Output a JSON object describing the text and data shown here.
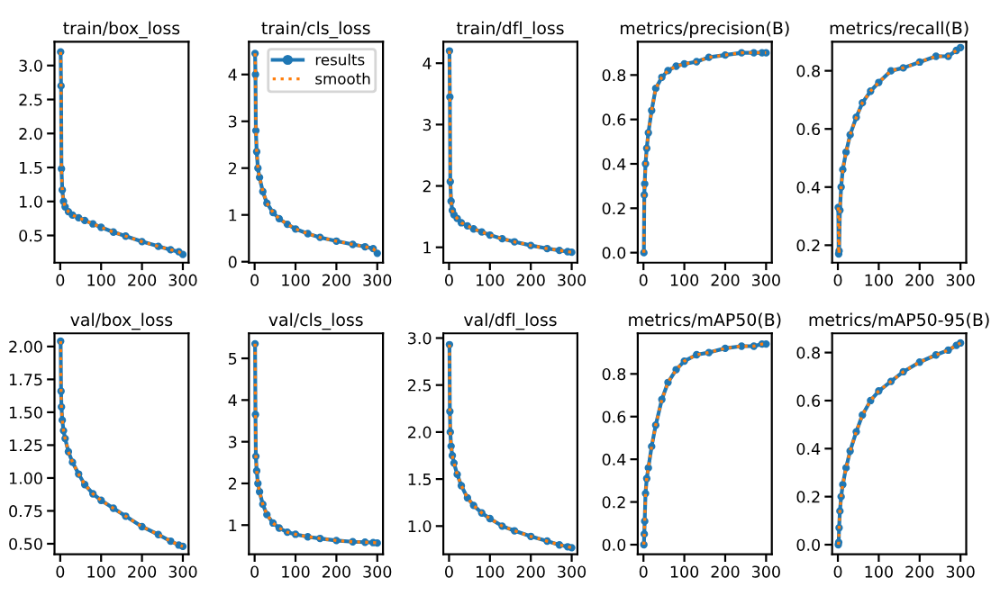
{
  "chart_data": [
    {
      "type": "line",
      "title": "train/box_loss",
      "xlim": [
        -14,
        314
      ],
      "xticks": [
        0,
        100,
        200,
        300
      ],
      "ylim": [
        0.1,
        3.35
      ],
      "yticks": [
        0.5,
        {
          "value": 1,
          "label": "1.0"
        },
        1.5,
        {
          "value": 2,
          "label": "2.0"
        },
        2.5,
        {
          "value": 3,
          "label": "3.0"
        }
      ],
      "legend": false,
      "x": [
        1,
        2,
        3,
        5,
        8,
        12,
        20,
        30,
        45,
        60,
        80,
        100,
        130,
        160,
        200,
        240,
        270,
        290,
        300
      ],
      "series": [
        {
          "color": "#1f77b4",
          "marker": "circle",
          "line_style": "solid",
          "values": [
            3.2,
            2.7,
            1.48,
            1.17,
            1.0,
            0.92,
            0.85,
            0.8,
            0.76,
            0.72,
            0.67,
            0.62,
            0.55,
            0.49,
            0.41,
            0.34,
            0.29,
            0.26,
            0.22
          ]
        },
        {
          "color": "#ff7f0e",
          "marker": "none",
          "line_style": "dotted",
          "values": [
            3.2,
            2.7,
            1.48,
            1.17,
            1.0,
            0.92,
            0.85,
            0.8,
            0.76,
            0.72,
            0.67,
            0.62,
            0.55,
            0.49,
            0.41,
            0.34,
            0.29,
            0.26,
            0.22
          ]
        }
      ]
    },
    {
      "type": "line",
      "title": "train/cls_loss",
      "xlim": [
        -14,
        314
      ],
      "xticks": [
        0,
        100,
        200,
        300
      ],
      "ylim": [
        -0.02,
        4.7
      ],
      "yticks": [
        0,
        1,
        2,
        3,
        4
      ],
      "legend": "top right",
      "x": [
        1,
        2,
        3,
        5,
        8,
        12,
        20,
        30,
        45,
        60,
        80,
        100,
        130,
        160,
        200,
        240,
        270,
        290,
        300
      ],
      "series": [
        {
          "name": "results",
          "color": "#1f77b4",
          "marker": "circle",
          "line_style": "solid",
          "values": [
            4.45,
            4.0,
            2.8,
            2.35,
            2.0,
            1.8,
            1.5,
            1.25,
            1.05,
            0.92,
            0.8,
            0.7,
            0.6,
            0.52,
            0.44,
            0.37,
            0.32,
            0.28,
            0.18
          ]
        },
        {
          "name": "smooth",
          "color": "#ff7f0e",
          "marker": "none",
          "line_style": "dotted",
          "values": [
            4.45,
            4.0,
            2.8,
            2.35,
            2.0,
            1.8,
            1.5,
            1.25,
            1.05,
            0.92,
            0.8,
            0.7,
            0.6,
            0.52,
            0.44,
            0.37,
            0.32,
            0.28,
            0.18
          ]
        }
      ]
    },
    {
      "type": "line",
      "title": "train/dfl_loss",
      "xlim": [
        -14,
        314
      ],
      "xticks": [
        0,
        100,
        200,
        300
      ],
      "ylim": [
        0.75,
        4.35
      ],
      "yticks": [
        1,
        2,
        3,
        4
      ],
      "legend": false,
      "x": [
        1,
        2,
        3,
        5,
        8,
        12,
        20,
        30,
        45,
        60,
        80,
        100,
        130,
        160,
        200,
        240,
        270,
        290,
        300
      ],
      "series": [
        {
          "color": "#1f77b4",
          "marker": "circle",
          "line_style": "solid",
          "values": [
            4.2,
            3.45,
            2.07,
            1.75,
            1.6,
            1.53,
            1.47,
            1.4,
            1.35,
            1.3,
            1.25,
            1.2,
            1.14,
            1.09,
            1.03,
            0.98,
            0.95,
            0.93,
            0.92
          ]
        },
        {
          "color": "#ff7f0e",
          "marker": "none",
          "line_style": "dotted",
          "values": [
            4.2,
            3.45,
            2.07,
            1.75,
            1.6,
            1.53,
            1.47,
            1.4,
            1.35,
            1.3,
            1.25,
            1.2,
            1.14,
            1.09,
            1.03,
            0.98,
            0.95,
            0.93,
            0.92
          ]
        }
      ]
    },
    {
      "type": "line",
      "title": "metrics/precision(B)",
      "xlim": [
        -14,
        314
      ],
      "xticks": [
        0,
        100,
        200,
        300
      ],
      "ylim": [
        -0.045,
        0.95
      ],
      "yticks": [
        {
          "value": 0,
          "label": "0.0"
        },
        0.2,
        0.4,
        0.6,
        0.8
      ],
      "legend": false,
      "x": [
        1,
        2,
        3,
        5,
        8,
        12,
        20,
        30,
        45,
        60,
        80,
        100,
        130,
        160,
        200,
        240,
        270,
        290,
        300
      ],
      "series": [
        {
          "color": "#1f77b4",
          "marker": "circle",
          "line_style": "solid",
          "values": [
            0.0,
            0.26,
            0.31,
            0.4,
            0.47,
            0.54,
            0.64,
            0.74,
            0.79,
            0.82,
            0.84,
            0.85,
            0.86,
            0.88,
            0.89,
            0.9,
            0.9,
            0.9,
            0.9
          ]
        },
        {
          "color": "#ff7f0e",
          "marker": "none",
          "line_style": "dotted",
          "values": [
            0.0,
            0.26,
            0.31,
            0.4,
            0.47,
            0.54,
            0.64,
            0.74,
            0.79,
            0.82,
            0.84,
            0.85,
            0.86,
            0.88,
            0.89,
            0.9,
            0.9,
            0.9,
            0.9
          ]
        }
      ]
    },
    {
      "type": "line",
      "title": "metrics/recall(B)",
      "xlim": [
        -14,
        314
      ],
      "xticks": [
        0,
        100,
        200,
        300
      ],
      "ylim": [
        0.14,
        0.9
      ],
      "yticks": [
        0.2,
        0.4,
        0.6,
        0.8
      ],
      "legend": false,
      "x": [
        1,
        2,
        3,
        5,
        8,
        12,
        20,
        30,
        45,
        60,
        80,
        100,
        130,
        160,
        200,
        240,
        270,
        290,
        300
      ],
      "series": [
        {
          "color": "#1f77b4",
          "marker": "circle",
          "line_style": "solid",
          "values": [
            0.33,
            0.17,
            0.18,
            0.32,
            0.4,
            0.46,
            0.52,
            0.58,
            0.64,
            0.69,
            0.73,
            0.76,
            0.8,
            0.81,
            0.83,
            0.85,
            0.85,
            0.87,
            0.88
          ]
        },
        {
          "color": "#ff7f0e",
          "marker": "none",
          "line_style": "dotted",
          "values": [
            0.33,
            0.17,
            0.18,
            0.32,
            0.4,
            0.46,
            0.52,
            0.58,
            0.64,
            0.69,
            0.73,
            0.76,
            0.8,
            0.81,
            0.83,
            0.85,
            0.85,
            0.87,
            0.88
          ]
        }
      ]
    },
    {
      "type": "line",
      "title": "val/box_loss",
      "xlim": [
        -14,
        314
      ],
      "xticks": [
        0,
        100,
        200,
        300
      ],
      "ylim": [
        0.42,
        2.1
      ],
      "yticks": [
        {
          "value": 0.5,
          "label": "0.50"
        },
        {
          "value": 0.75,
          "label": "0.75"
        },
        {
          "value": 1.0,
          "label": "1.00"
        },
        {
          "value": 1.25,
          "label": "1.25"
        },
        {
          "value": 1.5,
          "label": "1.50"
        },
        {
          "value": 1.75,
          "label": "1.75"
        },
        {
          "value": 2.0,
          "label": "2.00"
        }
      ],
      "legend": false,
      "x": [
        1,
        2,
        3,
        5,
        8,
        12,
        20,
        30,
        45,
        60,
        80,
        100,
        130,
        160,
        200,
        240,
        270,
        290,
        300
      ],
      "series": [
        {
          "color": "#1f77b4",
          "marker": "circle",
          "line_style": "solid",
          "values": [
            2.04,
            1.66,
            1.54,
            1.44,
            1.36,
            1.3,
            1.2,
            1.12,
            1.03,
            0.95,
            0.88,
            0.83,
            0.77,
            0.71,
            0.63,
            0.57,
            0.52,
            0.49,
            0.48
          ]
        },
        {
          "color": "#ff7f0e",
          "marker": "none",
          "line_style": "dotted",
          "values": [
            2.04,
            1.66,
            1.54,
            1.44,
            1.36,
            1.3,
            1.2,
            1.12,
            1.03,
            0.95,
            0.88,
            0.83,
            0.77,
            0.71,
            0.63,
            0.57,
            0.52,
            0.49,
            0.48
          ]
        }
      ]
    },
    {
      "type": "line",
      "title": "val/cls_loss",
      "xlim": [
        -14,
        314
      ],
      "xticks": [
        0,
        100,
        200,
        300
      ],
      "ylim": [
        0.3,
        5.6
      ],
      "yticks": [
        1,
        2,
        3,
        4,
        5
      ],
      "legend": false,
      "x": [
        1,
        2,
        3,
        5,
        8,
        12,
        20,
        30,
        45,
        60,
        80,
        100,
        130,
        160,
        200,
        240,
        270,
        290,
        300
      ],
      "series": [
        {
          "color": "#1f77b4",
          "marker": "circle",
          "line_style": "solid",
          "values": [
            5.35,
            3.65,
            2.65,
            2.3,
            2.0,
            1.8,
            1.5,
            1.25,
            1.05,
            0.93,
            0.83,
            0.78,
            0.72,
            0.68,
            0.63,
            0.6,
            0.59,
            0.58,
            0.57
          ]
        },
        {
          "color": "#ff7f0e",
          "marker": "none",
          "line_style": "dotted",
          "values": [
            5.35,
            3.65,
            2.65,
            2.3,
            2.0,
            1.8,
            1.5,
            1.25,
            1.05,
            0.93,
            0.83,
            0.78,
            0.72,
            0.68,
            0.63,
            0.6,
            0.59,
            0.58,
            0.57
          ]
        }
      ]
    },
    {
      "type": "line",
      "title": "val/dfl_loss",
      "xlim": [
        -14,
        314
      ],
      "xticks": [
        0,
        100,
        200,
        300
      ],
      "ylim": [
        0.7,
        3.05
      ],
      "yticks": [
        {
          "value": 1,
          "label": "1.0"
        },
        1.5,
        {
          "value": 2,
          "label": "2.0"
        },
        2.5,
        {
          "value": 3,
          "label": "3.0"
        }
      ],
      "legend": false,
      "x": [
        1,
        2,
        3,
        5,
        8,
        12,
        20,
        30,
        45,
        60,
        80,
        100,
        130,
        160,
        200,
        240,
        270,
        290,
        300
      ],
      "series": [
        {
          "color": "#1f77b4",
          "marker": "circle",
          "line_style": "solid",
          "values": [
            2.93,
            2.22,
            2.0,
            1.85,
            1.75,
            1.67,
            1.55,
            1.43,
            1.3,
            1.22,
            1.14,
            1.08,
            1.0,
            0.95,
            0.89,
            0.84,
            0.8,
            0.78,
            0.77
          ]
        },
        {
          "color": "#ff7f0e",
          "marker": "none",
          "line_style": "dotted",
          "values": [
            2.93,
            2.22,
            2.0,
            1.85,
            1.75,
            1.67,
            1.55,
            1.43,
            1.3,
            1.22,
            1.14,
            1.08,
            1.0,
            0.95,
            0.89,
            0.84,
            0.8,
            0.78,
            0.77
          ]
        }
      ]
    },
    {
      "type": "line",
      "title": "metrics/mAP50(B)",
      "xlim": [
        -14,
        314
      ],
      "xticks": [
        0,
        100,
        200,
        300
      ],
      "ylim": [
        -0.045,
        0.99
      ],
      "yticks": [
        {
          "value": 0,
          "label": "0.0"
        },
        0.2,
        0.4,
        0.6,
        0.8
      ],
      "legend": false,
      "x": [
        1,
        2,
        3,
        5,
        8,
        12,
        20,
        30,
        45,
        60,
        80,
        100,
        130,
        160,
        200,
        240,
        270,
        290,
        300
      ],
      "series": [
        {
          "color": "#1f77b4",
          "marker": "circle",
          "line_style": "solid",
          "values": [
            0.0,
            0.05,
            0.11,
            0.24,
            0.31,
            0.36,
            0.46,
            0.56,
            0.68,
            0.76,
            0.82,
            0.86,
            0.89,
            0.9,
            0.92,
            0.93,
            0.93,
            0.94,
            0.94
          ]
        },
        {
          "color": "#ff7f0e",
          "marker": "none",
          "line_style": "dotted",
          "values": [
            0.0,
            0.05,
            0.11,
            0.24,
            0.31,
            0.36,
            0.46,
            0.56,
            0.68,
            0.76,
            0.82,
            0.86,
            0.89,
            0.9,
            0.92,
            0.93,
            0.93,
            0.94,
            0.94
          ]
        }
      ]
    },
    {
      "type": "line",
      "title": "metrics/mAP50-95(B)",
      "xlim": [
        -14,
        314
      ],
      "xticks": [
        0,
        100,
        200,
        300
      ],
      "ylim": [
        -0.04,
        0.88
      ],
      "yticks": [
        {
          "value": 0,
          "label": "0.0"
        },
        0.2,
        0.4,
        0.6,
        0.8
      ],
      "legend": false,
      "x": [
        1,
        2,
        3,
        5,
        8,
        12,
        20,
        30,
        45,
        60,
        80,
        100,
        130,
        160,
        200,
        240,
        270,
        290,
        300
      ],
      "series": [
        {
          "color": "#1f77b4",
          "marker": "circle",
          "line_style": "solid",
          "values": [
            0.0,
            0.01,
            0.07,
            0.14,
            0.2,
            0.25,
            0.32,
            0.39,
            0.47,
            0.54,
            0.6,
            0.64,
            0.68,
            0.72,
            0.76,
            0.79,
            0.81,
            0.83,
            0.84
          ]
        },
        {
          "color": "#ff7f0e",
          "marker": "none",
          "line_style": "dotted",
          "values": [
            0.0,
            0.01,
            0.07,
            0.14,
            0.2,
            0.25,
            0.32,
            0.39,
            0.47,
            0.54,
            0.6,
            0.64,
            0.68,
            0.72,
            0.76,
            0.79,
            0.81,
            0.83,
            0.84
          ]
        }
      ]
    }
  ]
}
